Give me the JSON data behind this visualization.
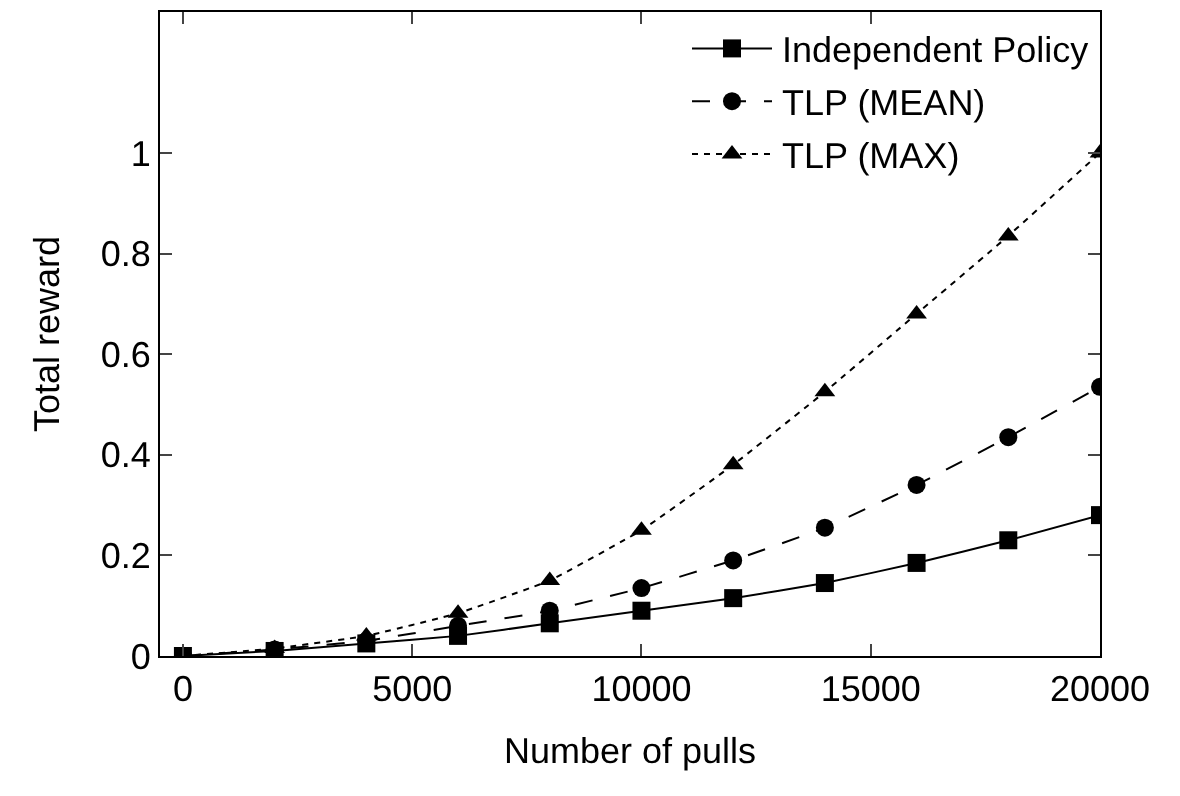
{
  "chart_data": {
    "type": "line",
    "xlabel": "Number of pulls",
    "ylabel": "Total reward",
    "x": [
      0,
      2000,
      4000,
      6000,
      8000,
      10000,
      12000,
      14000,
      16000,
      18000,
      20000
    ],
    "series": [
      {
        "name": "Independent Policy",
        "color": "#000000",
        "marker": "square",
        "line_style": "solid",
        "values": [
          0,
          0.01,
          0.025,
          0.04,
          0.065,
          0.09,
          0.115,
          0.145,
          0.185,
          0.23,
          0.28
        ]
      },
      {
        "name": "TLP (MEAN)",
        "color": "#000000",
        "marker": "circle",
        "line_style": "dashed",
        "values": [
          0,
          0.013,
          0.03,
          0.06,
          0.09,
          0.135,
          0.19,
          0.255,
          0.34,
          0.435,
          0.535
        ]
      },
      {
        "name": "TLP (MAX)",
        "color": "#000000",
        "marker": "triangle",
        "line_style": "dotted",
        "values": [
          0,
          0.015,
          0.04,
          0.085,
          0.15,
          0.25,
          0.38,
          0.525,
          0.68,
          0.835,
          1.0
        ]
      }
    ],
    "xlim": [
      -500,
      20000
    ],
    "xticks": [
      0,
      5000,
      10000,
      15000,
      20000
    ],
    "ylim": [
      0,
      1.28
    ],
    "yticks": [
      0,
      0.2,
      0.4,
      0.6,
      0.8,
      1
    ],
    "legend": "top right"
  }
}
